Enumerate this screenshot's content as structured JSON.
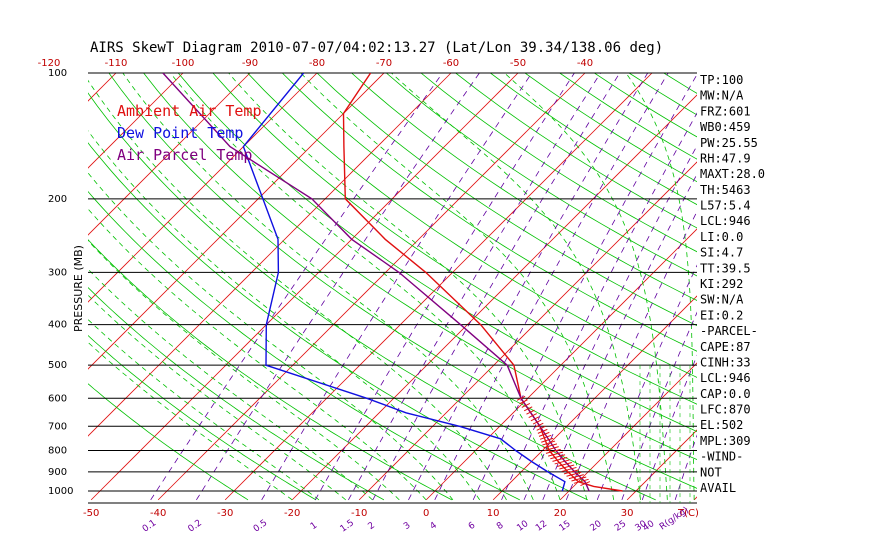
{
  "title": "AIRS SkewT Diagram 2010-07-07/04:02:13.27 (Lat/Lon 39.34/138.06 deg)",
  "legend": [
    {
      "label": "Ambient Air Temp",
      "color": "#e01010"
    },
    {
      "label": "Dew Point Temp",
      "color": "#1010e0"
    },
    {
      "label": "Air Parcel Temp",
      "color": "#800080"
    }
  ],
  "y_axis_label": "PRESSURE (MB)",
  "pressure_ticks": [
    "100",
    "200",
    "300",
    "400",
    "500",
    "600",
    "700",
    "800",
    "900",
    "1000"
  ],
  "top_temp_ticks": [
    "-120",
    "-110",
    "-100",
    "-90",
    "-80",
    "-70",
    "-60",
    "-50",
    "-40"
  ],
  "bottom_temp_ticks": [
    "-50",
    "-40",
    "-30",
    "-20",
    "-10",
    "0",
    "10",
    "20",
    "30"
  ],
  "bottom_temp_unit": "T(C)",
  "mixing_ratio_labels": [
    "0.1",
    "0.2",
    "0.5",
    "1",
    "1.5",
    "2",
    "3",
    "4",
    "6",
    "8",
    "10",
    "12",
    "15",
    "20",
    "25",
    "30",
    "40"
  ],
  "mixing_ratio_unit": "R(g/kg)",
  "indices": [
    "TP:100",
    "MW:N/A",
    "FRZ:601",
    "WB0:459",
    "PW:25.55",
    "RH:47.9",
    "MAXT:28.0",
    "TH:5463",
    "L57:5.4",
    "LCL:946",
    "LI:0.0",
    "SI:4.7",
    "TT:39.5",
    "KI:292",
    "SW:N/A",
    "EI:0.2",
    "-PARCEL-",
    "CAPE:87",
    "CINH:33",
    "LCL:946",
    "CAP:0.0",
    "LFC:870",
    "EL:502",
    "MPL:309",
    "-WIND-",
    "NOT",
    "AVAIL"
  ],
  "colors": {
    "temp": "#e01010",
    "dewpoint": "#1010e0",
    "parcel": "#800080",
    "isotherm": "#e01010",
    "dry_adiabat": "#00c000",
    "moist_adiabat": "#00c000",
    "mixing_ratio": "#6000a0",
    "isobar": "#000000"
  },
  "chart_data": {
    "type": "line",
    "title": "AIRS SkewT Diagram 2010-07-07/04:02:13.27 (Lat/Lon 39.34/138.06 deg)",
    "ylabel": "PRESSURE (MB)",
    "xlabel": "T(C)",
    "ylim": [
      1050,
      100
    ],
    "series": [
      {
        "name": "Ambient Air Temp",
        "points": [
          [
            1000,
            28
          ],
          [
            975,
            23
          ],
          [
            950,
            20
          ],
          [
            900,
            17
          ],
          [
            850,
            14
          ],
          [
            800,
            11
          ],
          [
            700,
            6
          ],
          [
            600,
            -1
          ],
          [
            500,
            -7
          ],
          [
            400,
            -18
          ],
          [
            300,
            -34
          ],
          [
            250,
            -45
          ],
          [
            200,
            -57
          ],
          [
            150,
            -65
          ],
          [
            125,
            -70
          ],
          [
            100,
            -72
          ]
        ]
      },
      {
        "name": "Dew Point Temp",
        "points": [
          [
            1000,
            19
          ],
          [
            950,
            18
          ],
          [
            900,
            14
          ],
          [
            850,
            10
          ],
          [
            800,
            6
          ],
          [
            750,
            2
          ],
          [
            700,
            -6
          ],
          [
            650,
            -16
          ],
          [
            600,
            -24
          ],
          [
            500,
            -44
          ],
          [
            400,
            -50
          ],
          [
            300,
            -56
          ],
          [
            250,
            -61
          ],
          [
            150,
            -80
          ],
          [
            100,
            -82
          ]
        ]
      },
      {
        "name": "Air Parcel Temp",
        "points": [
          [
            1000,
            23
          ],
          [
            950,
            21
          ],
          [
            900,
            18
          ],
          [
            850,
            15
          ],
          [
            800,
            12
          ],
          [
            700,
            6
          ],
          [
            600,
            -1
          ],
          [
            500,
            -8
          ],
          [
            400,
            -21
          ],
          [
            300,
            -38
          ],
          [
            250,
            -50
          ],
          [
            200,
            -62
          ],
          [
            150,
            -82
          ],
          [
            100,
            -103
          ]
        ]
      }
    ]
  }
}
